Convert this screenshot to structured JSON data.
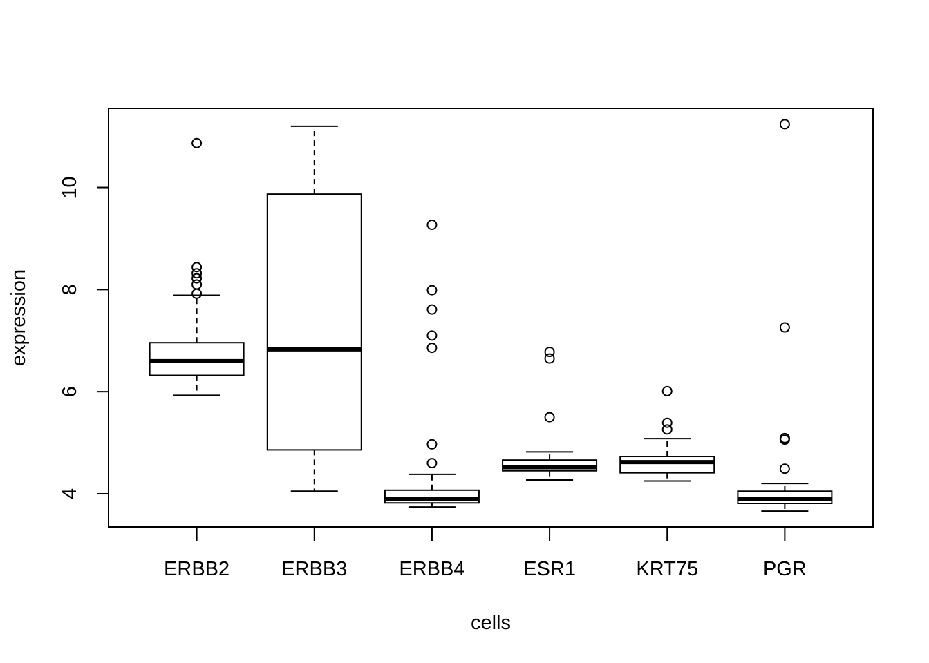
{
  "chart_data": {
    "type": "boxplot",
    "title": "",
    "xlabel": "cells",
    "ylabel": "expression",
    "ylim": [
      3.35,
      11.55
    ],
    "yticks": [
      4,
      6,
      8,
      10
    ],
    "ytick_labels": [
      "4",
      "6",
      "8",
      "10"
    ],
    "grid": false,
    "categories": [
      "ERBB2",
      "ERBB3",
      "ERBB4",
      "ESR1",
      "KRT75",
      "PGR"
    ],
    "boxes": [
      {
        "name": "ERBB2",
        "whisker_low": 5.93,
        "q1": 6.32,
        "median": 6.6,
        "q3": 6.96,
        "whisker_high": 7.89,
        "outliers": [
          10.87,
          8.44,
          8.32,
          8.22,
          8.1,
          7.92
        ]
      },
      {
        "name": "ERBB3",
        "whisker_low": 4.05,
        "q1": 4.86,
        "median": 6.83,
        "q3": 9.87,
        "whisker_high": 11.2,
        "outliers": []
      },
      {
        "name": "ERBB4",
        "whisker_low": 3.74,
        "q1": 3.82,
        "median": 3.9,
        "q3": 4.07,
        "whisker_high": 4.38,
        "outliers": [
          9.27,
          7.99,
          7.61,
          7.1,
          6.86,
          4.97,
          4.6
        ]
      },
      {
        "name": "ESR1",
        "whisker_low": 4.27,
        "q1": 4.45,
        "median": 4.52,
        "q3": 4.66,
        "whisker_high": 4.82,
        "outliers": [
          6.78,
          6.65,
          5.5
        ]
      },
      {
        "name": "KRT75",
        "whisker_low": 4.25,
        "q1": 4.41,
        "median": 4.62,
        "q3": 4.73,
        "whisker_high": 5.08,
        "outliers": [
          6.01,
          5.39,
          5.26
        ]
      },
      {
        "name": "PGR",
        "whisker_low": 3.66,
        "q1": 3.81,
        "median": 3.9,
        "q3": 4.05,
        "whisker_high": 4.2,
        "outliers": [
          11.24,
          7.26,
          5.09,
          5.06,
          4.49
        ]
      }
    ]
  }
}
